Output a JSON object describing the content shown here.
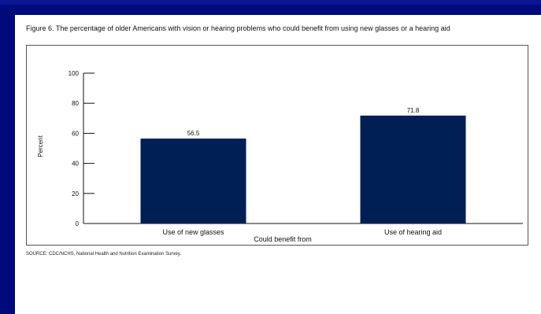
{
  "figure": {
    "title": "Figure 6. The percentage of older Americans with vision or hearing problems who could benefit from using new glasses or a hearing aid",
    "source": "SOURCE: CDC/NCHS, National Health and Nutrition Examination Survey."
  },
  "colors": {
    "bar": "#002055",
    "background": "#000a7a"
  },
  "chart_data": {
    "type": "bar",
    "categories": [
      "Use of new glasses",
      "Use of hearing aid"
    ],
    "values": [
      56.5,
      71.8
    ],
    "data_labels": [
      "56.5",
      "71.8"
    ],
    "xlabel": "Could benefit from",
    "ylabel": "Percent",
    "ylim": [
      0,
      100
    ],
    "yticks": [
      0,
      20,
      40,
      60,
      80,
      100
    ],
    "grid": false,
    "legend": "none"
  }
}
